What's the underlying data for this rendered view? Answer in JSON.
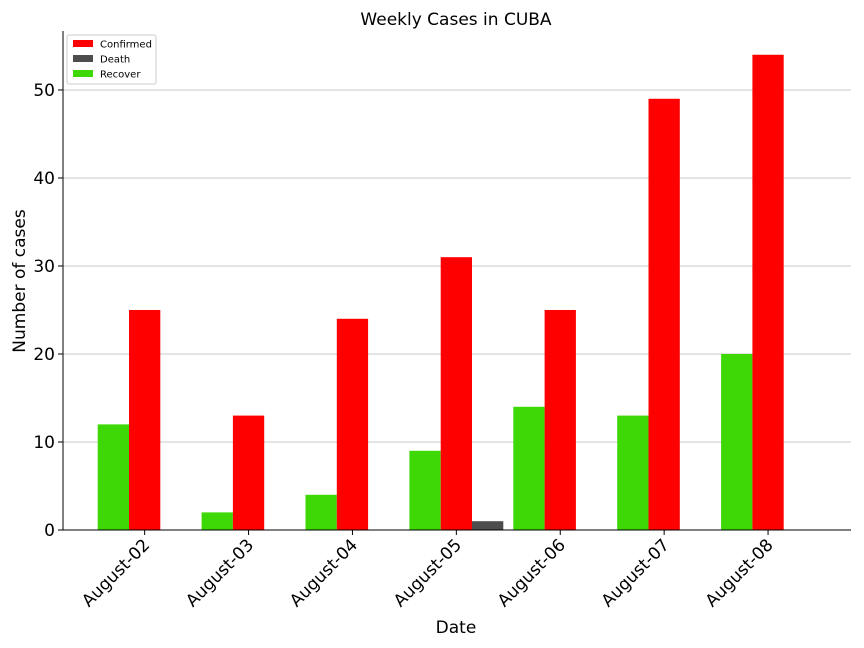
{
  "chart_data": {
    "type": "bar",
    "title": "Weekly Cases in CUBA",
    "xlabel": "Date",
    "ylabel": "Number of cases",
    "categories": [
      "August-02",
      "August-03",
      "August-04",
      "August-05",
      "August-06",
      "August-07",
      "August-08"
    ],
    "series": [
      {
        "name": "Confirmed",
        "color": "#ff0000",
        "values": [
          25,
          13,
          24,
          31,
          25,
          49,
          54
        ]
      },
      {
        "name": "Death",
        "color": "#4d4d4d",
        "values": [
          0,
          0,
          0,
          1,
          0,
          0,
          0
        ]
      },
      {
        "name": "Recover",
        "color": "#3dd806",
        "values": [
          12,
          2,
          4,
          9,
          14,
          13,
          20
        ]
      }
    ],
    "ylim": [
      0,
      56.7
    ],
    "yticks": [
      0,
      10,
      20,
      30,
      40,
      50
    ],
    "grid": "y",
    "legend_position": "top-left"
  }
}
